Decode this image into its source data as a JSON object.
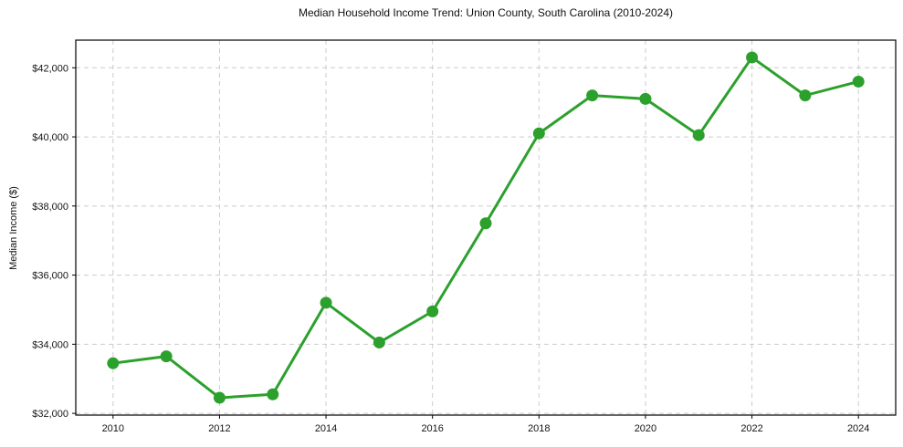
{
  "chart_data": {
    "type": "line",
    "title": "Median Household Income Trend: Union County, South Carolina (2010-2024)",
    "xlabel": "",
    "ylabel": "Median Income ($)",
    "x": [
      2010,
      2011,
      2012,
      2013,
      2014,
      2015,
      2016,
      2017,
      2018,
      2019,
      2020,
      2021,
      2022,
      2023,
      2024
    ],
    "series": [
      {
        "name": "Median Household Income",
        "values": [
          33450,
          33650,
          32450,
          32550,
          35200,
          34050,
          34950,
          37500,
          40100,
          41200,
          41100,
          40050,
          42300,
          41200,
          41600
        ]
      }
    ],
    "x_ticks": [
      2010,
      2012,
      2014,
      2016,
      2018,
      2020,
      2022,
      2024
    ],
    "y_ticks": [
      32000,
      34000,
      36000,
      38000,
      40000,
      42000
    ],
    "y_tick_labels": [
      "$32,000",
      "$34,000",
      "$36,000",
      "$38,000",
      "$40,000",
      "$42,000"
    ],
    "xlim": [
      2009.3,
      2024.7
    ],
    "ylim": [
      31950,
      42800
    ],
    "grid": true,
    "legend_position": "none",
    "line_color": "#2ca02c",
    "marker": "circle",
    "grid_color": "#cccccc",
    "frame_color": "#000000"
  }
}
